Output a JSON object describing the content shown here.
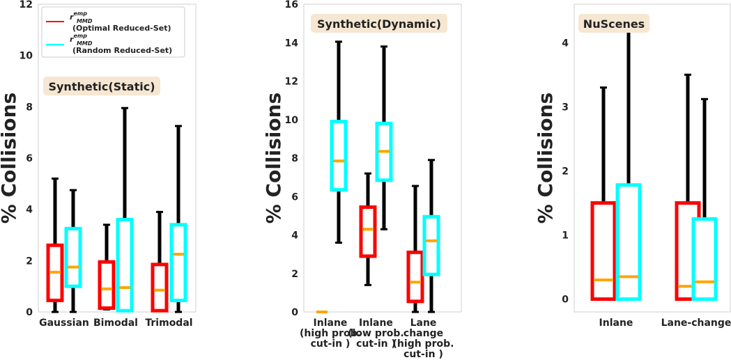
{
  "legend": {
    "symbol": "r",
    "sup": "emp",
    "sub": "MMD",
    "entries": [
      {
        "label": "(Optimal Reduced-Set)",
        "color": "#ff0000"
      },
      {
        "label": "(Random Reduced-Set)",
        "color": "#00ffff"
      }
    ]
  },
  "colors": {
    "optimal": "#ff0000",
    "random": "#00ffff",
    "median": "#ffa500",
    "whisker": "#000000",
    "title_bg": "#f6e7d2"
  },
  "chart_data": [
    {
      "type": "box",
      "title": "Synthetic(Static)",
      "ylabel": "% Collisions",
      "ylim": [
        0,
        12
      ],
      "yticks": [
        0,
        2,
        4,
        6,
        8,
        10,
        12
      ],
      "categories": [
        [
          "Gaussian"
        ],
        [
          "Bimodal"
        ],
        [
          "Trimodal"
        ]
      ],
      "series": [
        {
          "name": "Optimal Reduced-Set",
          "boxes": [
            {
              "min": 0,
              "q1": 0.45,
              "median": 1.55,
              "q3": 2.6,
              "max": 5.2
            },
            {
              "min": 0.1,
              "q1": 0.15,
              "median": 0.9,
              "q3": 1.95,
              "max": 3.4
            },
            {
              "min": 0.05,
              "q1": 0.05,
              "median": 0.85,
              "q3": 1.85,
              "max": 3.9
            }
          ]
        },
        {
          "name": "Random Reduced-Set",
          "boxes": [
            {
              "min": 0,
              "q1": 1.0,
              "median": 1.75,
              "q3": 3.25,
              "max": 4.75
            },
            {
              "min": 0.05,
              "q1": 0.05,
              "median": 0.95,
              "q3": 3.6,
              "max": 7.95
            },
            {
              "min": 0,
              "q1": 0.45,
              "median": 2.25,
              "q3": 3.4,
              "max": 7.25
            }
          ]
        }
      ]
    },
    {
      "type": "box",
      "title": "Synthetic(Dynamic)",
      "ylabel": "% Collisions",
      "ylim": [
        0,
        16
      ],
      "yticks": [
        0,
        2,
        4,
        6,
        8,
        10,
        12,
        14,
        16
      ],
      "categories": [
        [
          "Inlane",
          "(high prob.",
          "cut-in )"
        ],
        [
          "Inlane",
          "(low prob.",
          "cut-in )"
        ],
        [
          "Lane",
          "change",
          "(high prob.",
          "cut-in )"
        ]
      ],
      "series": [
        {
          "name": "Optimal Reduced-Set",
          "boxes": [
            {
              "min": 0,
              "q1": 0,
              "median": 0,
              "q3": 0,
              "max": 0
            },
            {
              "min": 1.4,
              "q1": 2.9,
              "median": 4.3,
              "q3": 5.45,
              "max": 7.2
            },
            {
              "min": 0,
              "q1": 0.55,
              "median": 1.55,
              "q3": 3.1,
              "max": 6.55
            }
          ]
        },
        {
          "name": "Random Reduced-Set",
          "boxes": [
            {
              "min": 3.6,
              "q1": 6.35,
              "median": 7.85,
              "q3": 9.9,
              "max": 14.05
            },
            {
              "min": 4.3,
              "q1": 6.85,
              "median": 8.35,
              "q3": 9.8,
              "max": 13.8
            },
            {
              "min": 0,
              "q1": 1.95,
              "median": 3.7,
              "q3": 4.95,
              "max": 7.9
            }
          ]
        }
      ]
    },
    {
      "type": "box",
      "title": "NuScenes",
      "ylabel": "% Collisions",
      "ylim": [
        -0.2,
        4.6
      ],
      "yticks": [
        0,
        1,
        2,
        3,
        4
      ],
      "categories": [
        [
          "Inlane"
        ],
        [
          "Lane-change"
        ]
      ],
      "series": [
        {
          "name": "Optimal Reduced-Set",
          "boxes": [
            {
              "min": 0,
              "q1": 0,
              "median": 0.3,
              "q3": 1.5,
              "max": 3.3
            },
            {
              "min": 0,
              "q1": 0,
              "median": 0.2,
              "q3": 1.5,
              "max": 3.5
            }
          ]
        },
        {
          "name": "Random Reduced-Set",
          "boxes": [
            {
              "min": 0,
              "q1": 0,
              "median": 0.35,
              "q3": 1.78,
              "max": 4.4
            },
            {
              "min": 0,
              "q1": 0,
              "median": 0.27,
              "q3": 1.25,
              "max": 3.12
            }
          ]
        }
      ]
    }
  ]
}
